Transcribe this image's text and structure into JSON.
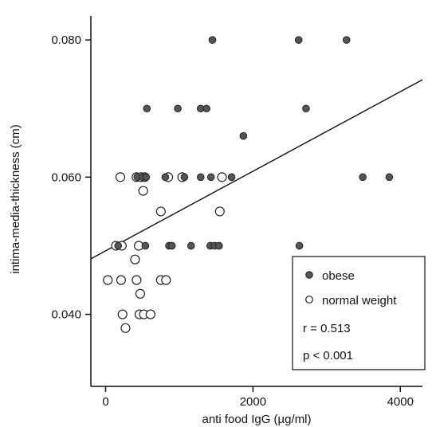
{
  "chart_data": {
    "type": "scatter",
    "title": "",
    "xlabel": "anti food IgG (µg/ml)",
    "ylabel": "intima-media-thickness (cm)",
    "xlim": [
      -200,
      4300
    ],
    "ylim": [
      0.0295,
      0.0835
    ],
    "xticks": [
      0,
      2000,
      4000
    ],
    "xtick_labels": [
      "0",
      "2000",
      "4000"
    ],
    "yticks": [
      0.04,
      0.06,
      0.08
    ],
    "ytick_labels": [
      "0.040",
      "0.060",
      "0.080"
    ],
    "grid": false,
    "legend_position": "bottom-right",
    "series": [
      {
        "name": "obese",
        "marker": "filled-circle",
        "color": "#555555",
        "points": [
          [
            1450,
            0.08
          ],
          [
            2620,
            0.08
          ],
          [
            3270,
            0.08
          ],
          [
            560,
            0.07
          ],
          [
            980,
            0.07
          ],
          [
            1290,
            0.07
          ],
          [
            1370,
            0.07
          ],
          [
            2720,
            0.07
          ],
          [
            1870,
            0.066
          ],
          [
            430,
            0.06
          ],
          [
            500,
            0.06
          ],
          [
            550,
            0.06
          ],
          [
            810,
            0.06
          ],
          [
            1070,
            0.06
          ],
          [
            1290,
            0.06
          ],
          [
            1430,
            0.06
          ],
          [
            1710,
            0.06
          ],
          [
            3490,
            0.06
          ],
          [
            3850,
            0.06
          ],
          [
            170,
            0.05
          ],
          [
            540,
            0.05
          ],
          [
            860,
            0.05
          ],
          [
            900,
            0.05
          ],
          [
            1160,
            0.05
          ],
          [
            1420,
            0.05
          ],
          [
            1480,
            0.05
          ],
          [
            1540,
            0.05
          ],
          [
            2630,
            0.05
          ]
        ]
      },
      {
        "name": "normal weight",
        "marker": "open-circle",
        "color": "#333333",
        "points": [
          [
            200,
            0.06
          ],
          [
            420,
            0.06
          ],
          [
            480,
            0.06
          ],
          [
            530,
            0.06
          ],
          [
            850,
            0.06
          ],
          [
            1040,
            0.06
          ],
          [
            1580,
            0.06
          ],
          [
            510,
            0.058
          ],
          [
            750,
            0.055
          ],
          [
            1550,
            0.055
          ],
          [
            140,
            0.05
          ],
          [
            220,
            0.05
          ],
          [
            450,
            0.05
          ],
          [
            400,
            0.048
          ],
          [
            30,
            0.045
          ],
          [
            210,
            0.045
          ],
          [
            420,
            0.045
          ],
          [
            750,
            0.045
          ],
          [
            820,
            0.045
          ],
          [
            470,
            0.043
          ],
          [
            230,
            0.04
          ],
          [
            460,
            0.04
          ],
          [
            520,
            0.04
          ],
          [
            610,
            0.04
          ],
          [
            270,
            0.038
          ]
        ]
      }
    ],
    "regression_line": {
      "x": [
        -200,
        4300
      ],
      "y": [
        0.0481,
        0.0742
      ]
    },
    "annotations": [
      "r = 0.513",
      "p < 0.001"
    ]
  }
}
